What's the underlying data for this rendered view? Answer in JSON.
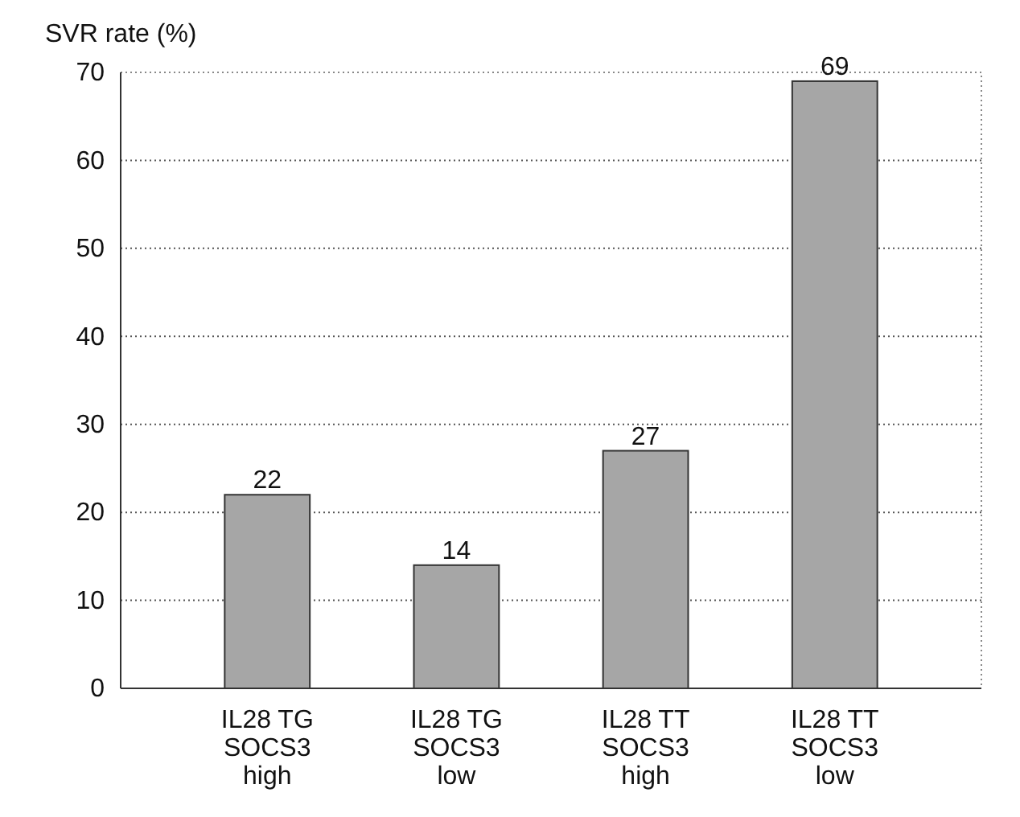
{
  "chart_data": {
    "type": "bar",
    "ylabel": "SVR rate (%)",
    "categories": [
      "IL28 TG\nSOCS3\nhigh",
      "IL28 TG\nSOCS3\nlow",
      "IL28 TT\nSOCS3\nhigh",
      "IL28 TT\nSOCS3\nlow"
    ],
    "values": [
      22,
      14,
      27,
      69
    ],
    "color": "#a6a6a6",
    "ylim": [
      0,
      70
    ],
    "yticks": [
      0,
      10,
      20,
      30,
      40,
      50,
      60,
      70
    ],
    "grid": "y",
    "data_labels": true
  }
}
